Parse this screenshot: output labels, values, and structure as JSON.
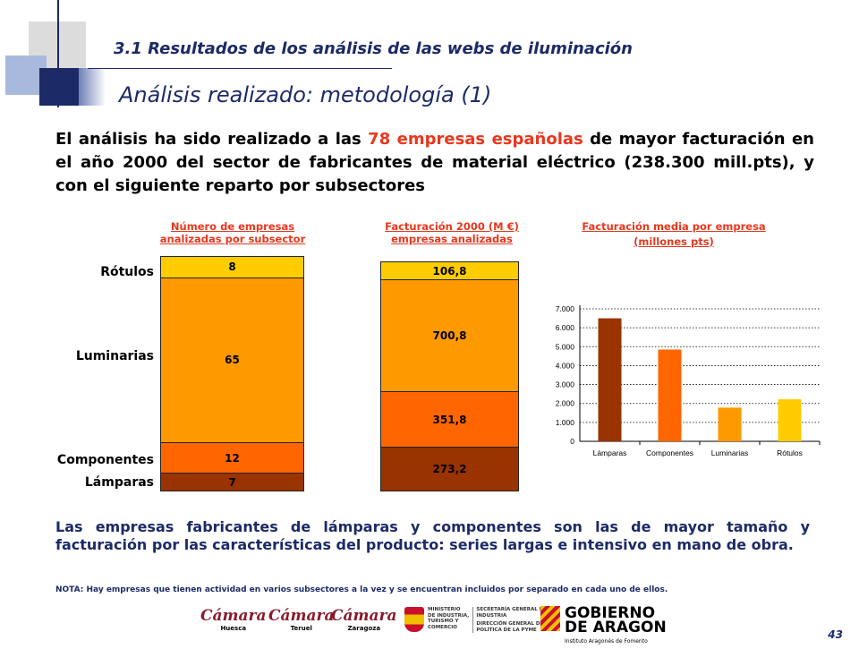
{
  "header": {
    "section_title": "3.1 Resultados de  los análisis de las webs de iluminación",
    "subtitle": "Análisis realizado: metodología (1)"
  },
  "intro": {
    "part1": "El análisis ha sido realizado a las ",
    "highlight": "78 empresas españolas",
    "part2": " de mayor facturación en el año 2000 del sector de fabricantes de material eléctrico (238.300 mill.pts), y con el siguiente reparto por subsectores"
  },
  "captions": {
    "empresas_line1": "Número de empresas",
    "empresas_line2": "analizadas por subsector",
    "facturacion_line1": "Facturación 2000 (M €)",
    "facturacion_line2": "empresas analizadas",
    "media_line1": "Facturación media por empresa",
    "media_line2": "(millones pts)"
  },
  "categories": {
    "rotulos": "Rótulos",
    "luminarias": "Luminarias",
    "componentes": "Componentes",
    "lamparas": "Lámparas"
  },
  "colors": {
    "rotulos": "#ffcc00",
    "luminarias": "#ff9900",
    "componentes": "#ff6600",
    "lamparas": "#993300",
    "title_blue": "#1c2a66",
    "highlight_red": "#e8371e"
  },
  "chart_data": [
    {
      "type": "bar",
      "stacked": true,
      "categories": [
        "Lámparas",
        "Componentes",
        "Luminarias",
        "Rótulos"
      ],
      "values": [
        7,
        12,
        65,
        8
      ],
      "labels": [
        "7",
        "12",
        "65",
        "8"
      ],
      "title": "Número de empresas analizadas por subsector"
    },
    {
      "type": "bar",
      "stacked": true,
      "categories": [
        "Lámparas",
        "Componentes",
        "Luminarias",
        "Rótulos"
      ],
      "values": [
        273.2,
        351.8,
        700.8,
        106.8
      ],
      "labels": [
        "273,2",
        "351,8",
        "700,8",
        "106,8"
      ],
      "title": "Facturación 2000 (M €) empresas analizadas"
    },
    {
      "type": "bar",
      "categories": [
        "Lámparas",
        "Componentes",
        "Luminarias",
        "Rótulos"
      ],
      "values": [
        6500,
        4850,
        1780,
        2220
      ],
      "title": "Facturación media por empresa (millones pts)",
      "ylim": [
        0,
        7000
      ],
      "yticks": [
        "0",
        "1.000",
        "2.000",
        "3.000",
        "4.000",
        "5.000",
        "6.000",
        "7.000"
      ],
      "grid": true
    }
  ],
  "conclusion": "Las empresas fabricantes de lámparas y componentes son las de mayor tamaño y facturación por las características del producto: series largas e intensivo en mano de obra.",
  "note": "NOTA: Hay empresas que tienen actividad en varios subsectores a la vez y se encuentran incluidos por separado en cada uno de ellos.",
  "page_number": "43",
  "logos": {
    "camara1": "Cámara",
    "camara1_city": "Huesca",
    "camara2": "Cámara",
    "camara2_city": "Teruel",
    "camara3": "Cámara",
    "camara3_city": "Zaragoza",
    "ministry_1": "MINISTERIO",
    "ministry_2": "DE INDUSTRIA,",
    "ministry_3": "TURISMO Y",
    "ministry_4": "COMERCIO",
    "secretaria_1": "SECRETARÍA GENERAL DE",
    "secretaria_2": "INDUSTRIA",
    "direccion_1": "DIRECCIÓN GENERAL DE",
    "direccion_2": "POLÍTICA DE LA PYME",
    "gobierno_1": "GOBIERNO",
    "gobierno_2": "DE ARAGON",
    "gobierno_3": "Instituto Aragonés de Fomento"
  }
}
